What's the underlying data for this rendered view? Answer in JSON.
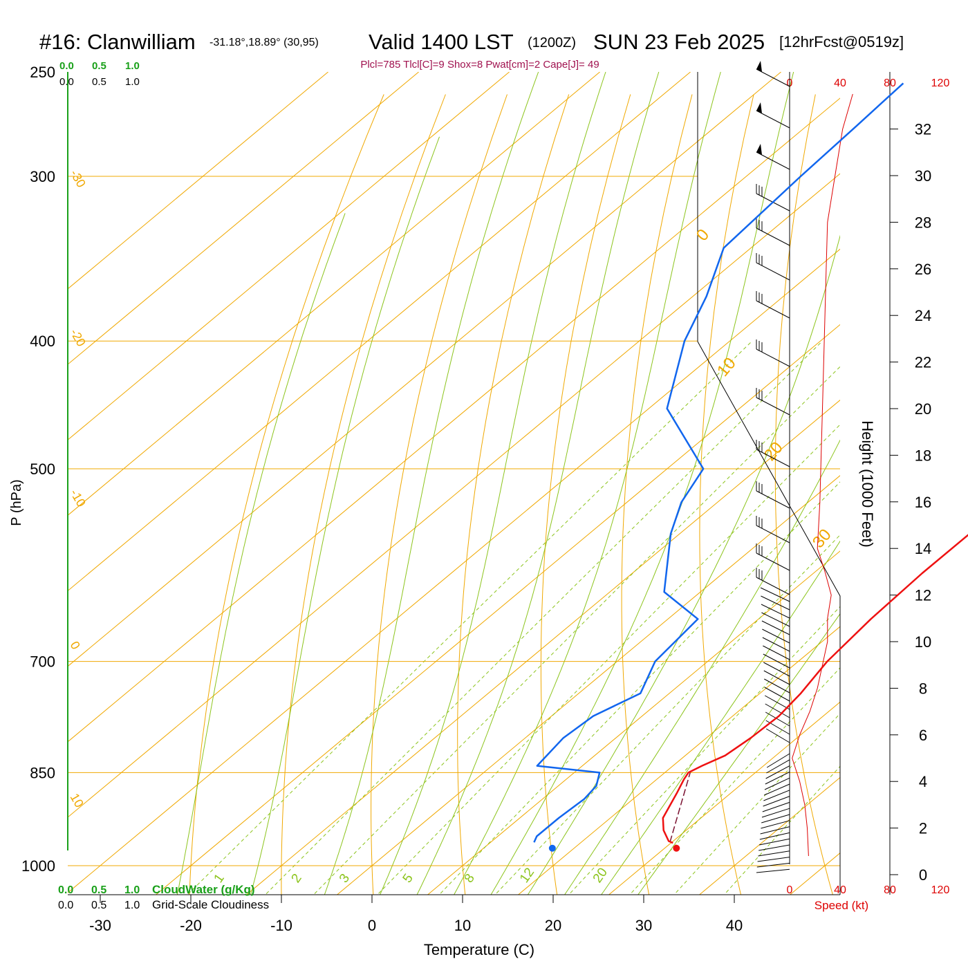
{
  "title": {
    "station": "#16: Clanwilliam",
    "coords": "-31.18°,18.89° (30,95)",
    "valid": "Valid 1400 LST",
    "utc": "(1200Z)",
    "date": "SUN 23 Feb 2025",
    "forecast": "[12hrFcst@0519z]"
  },
  "indices": "Plcl=785 Tlcl[C]=9 Shox=8 Pwat[cm]=2 Cape[J]= 49",
  "scales": {
    "cloudwater_ticks": [
      "0.0",
      "0.5",
      "1.0"
    ],
    "cloudiness_ticks": [
      "0.0",
      "0.5",
      "1.0"
    ],
    "cloudwater_label": "CloudWater (g/Kg)",
    "cloudiness_label": "Grid-Scale Cloudiness",
    "speed_ticks": [
      "0",
      "40",
      "80",
      "120"
    ],
    "speed_label": "Speed (kt)"
  },
  "colors": {
    "temperature": "#ee1111",
    "dewpoint": "#1166ee",
    "isotherm": "#f0a800",
    "dry_adiabat": "#f0a800",
    "moist_adiabat": "#8cc41c",
    "mixing_ratio": "#8cc41c",
    "cloudwater": "#19a019",
    "indices": "#a0124f",
    "wind_speed": "#dd0000"
  },
  "chart_data": {
    "type": "skew-t",
    "xlabel": "Temperature (C)",
    "ylabel": "P (hPa)",
    "y2label": "Height (1000 Feet)",
    "x_ticks": [
      -30,
      -20,
      -10,
      0,
      10,
      20,
      30,
      40
    ],
    "pressure_ticks": [
      250,
      300,
      400,
      500,
      700,
      850,
      1000
    ],
    "height_ticks_kft": [
      0,
      2,
      4,
      6,
      8,
      10,
      12,
      14,
      16,
      18,
      20,
      22,
      24,
      26,
      28,
      30,
      32
    ],
    "isotherm_labels": [
      -30,
      -20,
      -10,
      0,
      10,
      20,
      30,
      0,
      10,
      20,
      30
    ],
    "mixing_ratio_labels": [
      1,
      2,
      3,
      5,
      8,
      12,
      20
    ],
    "temperature_profile": [
      [
        961,
        30.2
      ],
      [
        958,
        29.5
      ],
      [
        940,
        27.5
      ],
      [
        920,
        25.8
      ],
      [
        880,
        24.0
      ],
      [
        860,
        23.0
      ],
      [
        850,
        22.6
      ],
      [
        840,
        23.2
      ],
      [
        825,
        24.4
      ],
      [
        800,
        24.9
      ],
      [
        770,
        25.1
      ],
      [
        740,
        24.5
      ],
      [
        700,
        23.2
      ],
      [
        650,
        22.4
      ],
      [
        600,
        22.0
      ],
      [
        550,
        22.0
      ],
      [
        500,
        22.2
      ],
      [
        460,
        22.6
      ],
      [
        420,
        21.0
      ],
      [
        380,
        19.2
      ],
      [
        340,
        17.5
      ],
      [
        300,
        15.7
      ],
      [
        275,
        14.8
      ],
      [
        255,
        14.1
      ]
    ],
    "dewpoint_profile": [
      [
        960,
        14.8
      ],
      [
        950,
        14.3
      ],
      [
        920,
        14.3
      ],
      [
        890,
        14.6
      ],
      [
        870,
        14.2
      ],
      [
        850,
        12.8
      ],
      [
        840,
        5.0
      ],
      [
        800,
        4.2
      ],
      [
        770,
        4.6
      ],
      [
        740,
        6.8
      ],
      [
        700,
        4.2
      ],
      [
        650,
        3.3
      ],
      [
        620,
        -4.0
      ],
      [
        560,
        -11.0
      ],
      [
        530,
        -14.0
      ],
      [
        500,
        -16.0
      ],
      [
        450,
        -28.0
      ],
      [
        400,
        -35.0
      ],
      [
        370,
        -38.5
      ],
      [
        340,
        -43.0
      ],
      [
        300,
        -44.0
      ],
      [
        275,
        -44.5
      ],
      [
        255,
        -45.0
      ]
    ],
    "parcel_path": [
      [
        960,
        29.8
      ],
      [
        850,
        22.8
      ]
    ],
    "surface_temperature": [
      970,
      31.3
    ],
    "surface_dewpoint": [
      970,
      17.6
    ],
    "wind_speed_kt": [
      [
        0.8,
        15
      ],
      [
        2.0,
        14
      ],
      [
        3.0,
        12
      ],
      [
        4.0,
        8
      ],
      [
        5.0,
        2
      ],
      [
        6.0,
        8
      ],
      [
        7.0,
        16
      ],
      [
        8.0,
        22
      ],
      [
        9.0,
        26
      ],
      [
        10.0,
        30
      ],
      [
        11.0,
        30
      ],
      [
        12.0,
        33
      ],
      [
        13.0,
        28
      ],
      [
        14.0,
        22
      ],
      [
        16.0,
        24
      ],
      [
        18.0,
        25
      ],
      [
        20.0,
        26
      ],
      [
        22.0,
        27
      ],
      [
        24.0,
        28
      ],
      [
        26.0,
        29
      ],
      [
        28.0,
        30
      ],
      [
        30.0,
        36
      ],
      [
        32.0,
        42
      ],
      [
        33.5,
        50
      ]
    ]
  }
}
